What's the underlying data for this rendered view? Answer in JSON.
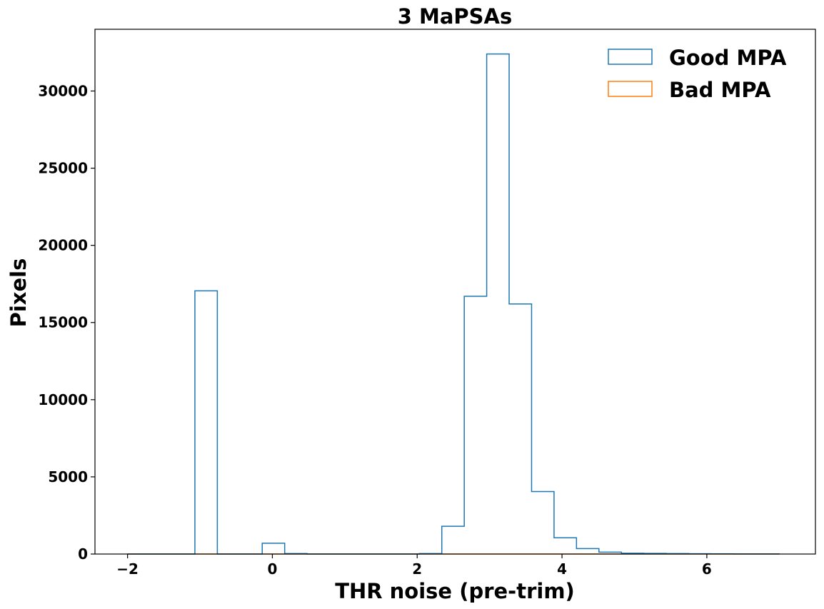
{
  "chart_data": {
    "type": "histogram",
    "title": "3 MaPSAs",
    "xlabel": "THR noise (pre-trim)",
    "ylabel": "Pixels",
    "xlim": [
      -2.45,
      7.5
    ],
    "ylim": [
      0,
      34000
    ],
    "xticks": [
      -2,
      0,
      2,
      4,
      6
    ],
    "xtick_labels": [
      "−2",
      "0",
      "2",
      "4",
      "6"
    ],
    "yticks": [
      0,
      5000,
      10000,
      15000,
      20000,
      25000,
      30000
    ],
    "ytick_labels": [
      "0",
      "5000",
      "10000",
      "15000",
      "20000",
      "25000",
      "30000"
    ],
    "grid": false,
    "legend_position": "top-right",
    "bin_edges": [
      -2.0,
      -1.69,
      -1.38,
      -1.07,
      -0.76,
      -0.45,
      -0.14,
      0.17,
      0.48,
      0.79,
      1.1,
      1.41,
      1.72,
      2.03,
      2.34,
      2.65,
      2.96,
      3.27,
      3.58,
      3.89,
      4.2,
      4.51,
      4.82,
      5.13,
      5.44,
      5.75,
      6.06,
      6.37,
      6.68,
      7.0
    ],
    "series": [
      {
        "name": "Good MPA",
        "color": "#1f77b4",
        "counts": [
          0,
          0,
          0,
          17050,
          0,
          0,
          700,
          30,
          0,
          0,
          0,
          0,
          0,
          30,
          1800,
          16700,
          32400,
          16200,
          4050,
          1050,
          350,
          120,
          50,
          40,
          30,
          20,
          10,
          5,
          5
        ]
      },
      {
        "name": "Bad MPA",
        "color": "#ff7f0e",
        "counts": [
          0,
          0,
          0,
          0,
          0,
          0,
          0,
          0,
          0,
          0,
          0,
          0,
          0,
          0,
          0,
          0,
          0,
          0,
          0,
          0,
          0,
          0,
          0,
          0,
          0,
          0,
          0,
          0,
          0
        ]
      }
    ]
  }
}
